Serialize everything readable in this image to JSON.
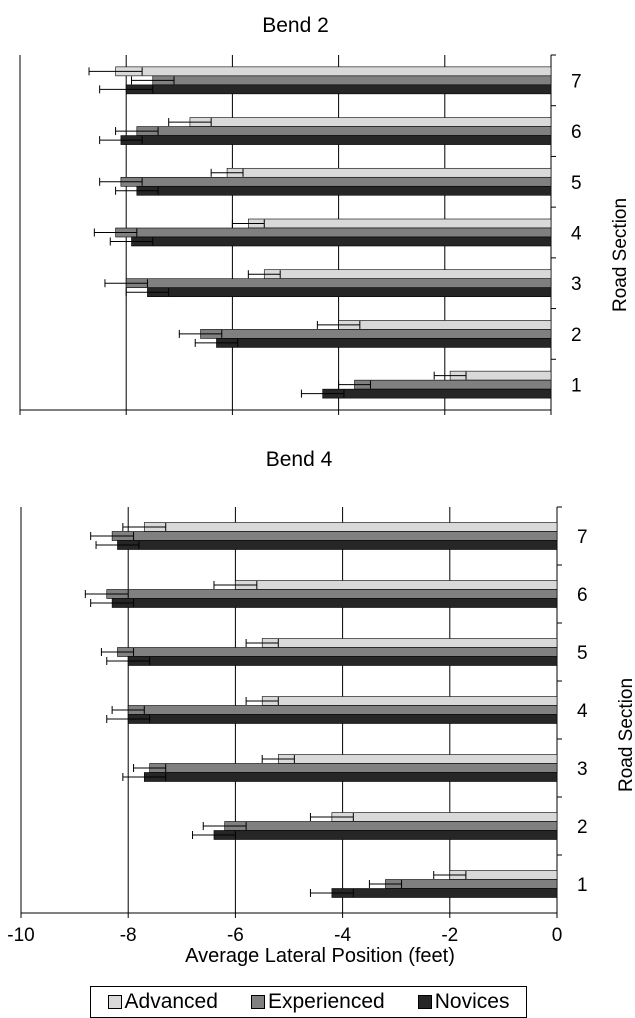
{
  "chart_data": [
    {
      "type": "bar",
      "orientation": "horizontal",
      "title": "Bend 2",
      "ylabel": "Road Section",
      "xlabel": "",
      "xlim": [
        -10,
        0
      ],
      "x_ticks": [
        "-10",
        "-8",
        "-6",
        "-4",
        "-2",
        "0"
      ],
      "x_ticks_shown": false,
      "grid": "vertical major gridlines",
      "categories": [
        "1",
        "2",
        "3",
        "4",
        "5",
        "6",
        "7"
      ],
      "series": [
        {
          "name": "Advanced",
          "values": [
            -1.9,
            -4.0,
            -5.4,
            -5.7,
            -6.1,
            -6.8,
            -8.2
          ],
          "errors": [
            0.3,
            0.4,
            0.3,
            0.3,
            0.3,
            0.4,
            0.5
          ]
        },
        {
          "name": "Experienced",
          "values": [
            -3.7,
            -6.6,
            -8.0,
            -8.2,
            -8.1,
            -7.8,
            -7.5
          ],
          "errors": [
            0.3,
            0.4,
            0.4,
            0.4,
            0.4,
            0.4,
            0.4
          ]
        },
        {
          "name": "Novices",
          "values": [
            -4.3,
            -6.3,
            -7.6,
            -7.9,
            -7.8,
            -8.1,
            -8.0
          ],
          "errors": [
            0.4,
            0.4,
            0.4,
            0.4,
            0.4,
            0.4,
            0.5
          ]
        }
      ]
    },
    {
      "type": "bar",
      "orientation": "horizontal",
      "title": "Bend 4",
      "ylabel": "Road Section",
      "xlabel": "Average Lateral Position (feet)",
      "xlim": [
        -10,
        0
      ],
      "x_ticks": [
        "-10",
        "-8",
        "-6",
        "-4",
        "-2",
        "0"
      ],
      "x_ticks_shown": true,
      "grid": "vertical major gridlines",
      "categories": [
        "1",
        "2",
        "3",
        "4",
        "5",
        "6",
        "7"
      ],
      "series": [
        {
          "name": "Advanced",
          "values": [
            -2.0,
            -4.2,
            -5.2,
            -5.5,
            -5.5,
            -6.0,
            -7.7
          ],
          "errors": [
            0.3,
            0.4,
            0.3,
            0.3,
            0.3,
            0.4,
            0.4
          ]
        },
        {
          "name": "Experienced",
          "values": [
            -3.2,
            -6.2,
            -7.6,
            -8.0,
            -8.2,
            -8.4,
            -8.3
          ],
          "errors": [
            0.3,
            0.4,
            0.3,
            0.3,
            0.3,
            0.4,
            0.4
          ]
        },
        {
          "name": "Novices",
          "values": [
            -4.2,
            -6.4,
            -7.7,
            -8.0,
            -8.0,
            -8.3,
            -8.2
          ],
          "errors": [
            0.4,
            0.4,
            0.4,
            0.4,
            0.4,
            0.4,
            0.4
          ]
        }
      ]
    }
  ],
  "legend": {
    "placement": "bottom",
    "entries": [
      {
        "label": "Advanced",
        "color": "#d9d9d9"
      },
      {
        "label": "Experienced",
        "color": "#808080"
      },
      {
        "label": "Novices",
        "color": "#262626"
      }
    ]
  },
  "colors": {
    "advanced": "#d9d9d9",
    "experienced": "#808080",
    "novices": "#262626",
    "axis": "#000000",
    "grid": "#000000"
  }
}
